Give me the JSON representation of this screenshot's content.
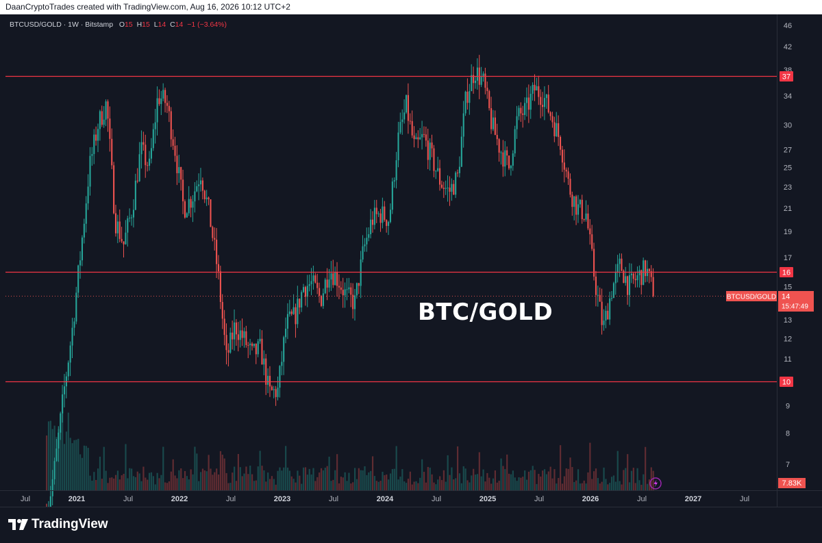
{
  "header": {
    "text": "DaanCryptoTrades created with TradingView.com, Aug 16, 2026 10:12 UTC+2"
  },
  "legend": {
    "symbol": "BTCUSD/GOLD · 1W · Bitstamp",
    "o_label": "O",
    "o_value": "15",
    "h_label": "H",
    "h_value": "15",
    "l_label": "L",
    "l_value": "14",
    "c_label": "C",
    "c_value": "14",
    "change": "−1 (−3.64%)"
  },
  "watermark": "BTC/GOLD",
  "price_axis": {
    "ticks": [
      "46",
      "42",
      "38",
      "34",
      "30",
      "27",
      "25",
      "23",
      "21",
      "19",
      "17",
      "15",
      "13",
      "12",
      "11",
      "10",
      "9",
      "8",
      "7"
    ],
    "tick_values": [
      46,
      42,
      38,
      34,
      30,
      27,
      25,
      23,
      21,
      19,
      17,
      15,
      13,
      12,
      11,
      10,
      9,
      8,
      7
    ]
  },
  "time_axis": {
    "ticks": [
      "Jul",
      "2021",
      "Jul",
      "2022",
      "Jul",
      "2023",
      "Jul",
      "2024",
      "Jul",
      "2025",
      "Jul",
      "2026",
      "Jul",
      "2027",
      "Jul"
    ],
    "bold": [
      false,
      true,
      false,
      true,
      false,
      true,
      false,
      true,
      false,
      true,
      false,
      true,
      false,
      true,
      false
    ]
  },
  "levels": [
    {
      "value": 37,
      "label": "37"
    },
    {
      "value": 16,
      "label": "16"
    },
    {
      "value": 10,
      "label": "10"
    }
  ],
  "current_price": {
    "value": 14.4,
    "symbol_tag": "BTCUSD/GOLD",
    "price": "14",
    "countdown": "15:47:49"
  },
  "volume_label": "7.83K",
  "colors": {
    "up": "#26a69a",
    "down": "#ef5350",
    "level": "#f23645",
    "bg": "#131722",
    "axis_text": "#b2b5be"
  },
  "brand": {
    "name": "TradingView"
  },
  "chart_data": {
    "type": "candlestick",
    "scale": "log",
    "ylim": [
      6.3,
      48
    ],
    "x_range": [
      "2020-06",
      "2027-09"
    ],
    "timeframe": "1W",
    "series_anchors": {
      "dates": [
        "2020-09",
        "2020-10",
        "2020-11",
        "2020-12",
        "2021-01",
        "2021-02",
        "2021-03",
        "2021-04",
        "2021-05",
        "2021-06",
        "2021-07",
        "2021-08",
        "2021-09",
        "2021-10",
        "2021-11",
        "2021-12",
        "2022-01",
        "2022-02",
        "2022-03",
        "2022-04",
        "2022-05",
        "2022-06",
        "2022-07",
        "2022-08",
        "2022-09",
        "2022-10",
        "2022-11",
        "2022-12",
        "2023-01",
        "2023-02",
        "2023-03",
        "2023-04",
        "2023-05",
        "2023-06",
        "2023-07",
        "2023-08",
        "2023-09",
        "2023-10",
        "2023-11",
        "2023-12",
        "2024-01",
        "2024-02",
        "2024-03",
        "2024-04",
        "2024-05",
        "2024-06",
        "2024-07",
        "2024-08",
        "2024-09",
        "2024-10",
        "2024-11",
        "2024-12",
        "2025-01",
        "2025-02",
        "2025-03",
        "2025-04",
        "2025-05",
        "2025-06",
        "2025-07",
        "2025-08",
        "2025-09",
        "2025-10",
        "2025-11",
        "2025-12",
        "2026-01",
        "2026-02",
        "2026-03",
        "2026-04",
        "2026-05",
        "2026-06",
        "2026-07",
        "2026-08"
      ],
      "close": [
        5.6,
        7.0,
        9.5,
        12.5,
        17.5,
        25.0,
        30.0,
        33.0,
        20.0,
        18.0,
        21.0,
        27.0,
        25.0,
        34.0,
        33.0,
        27.0,
        21.0,
        22.0,
        24.5,
        20.5,
        16.0,
        11.0,
        12.7,
        12.0,
        11.2,
        11.5,
        9.5,
        9.6,
        12.8,
        13.2,
        15.0,
        15.2,
        14.2,
        16.2,
        15.5,
        14.4,
        14.0,
        17.5,
        20.0,
        20.5,
        20.0,
        28.0,
        32.5,
        27.0,
        28.5,
        26.0,
        23.5,
        22.5,
        24.0,
        34.0,
        38.0,
        36.0,
        30.0,
        27.0,
        25.0,
        31.0,
        32.0,
        35.0,
        34.0,
        31.0,
        28.0,
        23.0,
        21.0,
        20.5,
        15.5,
        12.5,
        14.8,
        16.5,
        15.0,
        15.6,
        16.2,
        14.4
      ]
    },
    "levels": [
      37,
      16,
      10
    ],
    "last_close": 14.4,
    "ohlc_last": {
      "open": 15,
      "high": 15,
      "low": 14,
      "close": 14,
      "change": -1,
      "change_pct": -3.64
    }
  }
}
